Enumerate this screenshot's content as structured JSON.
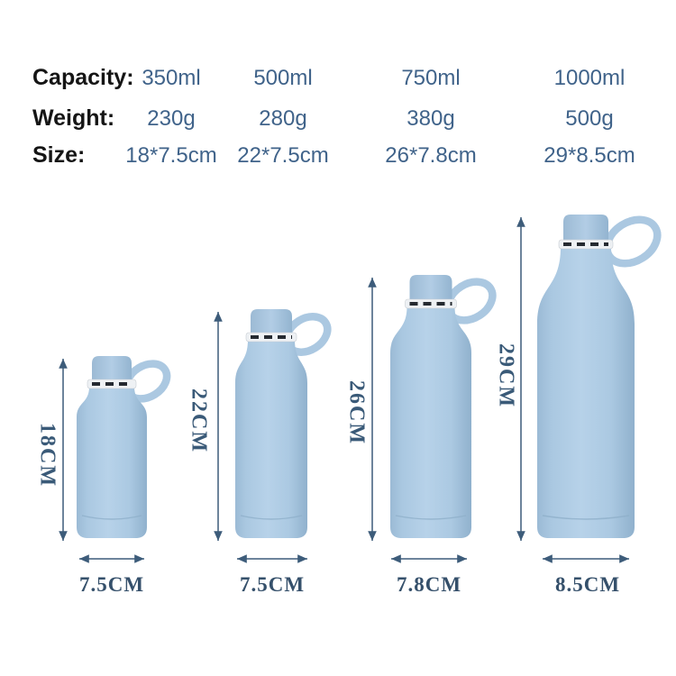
{
  "spec_table": {
    "rows": [
      {
        "label": "Capacity:",
        "values": [
          "350ml",
          "500ml",
          "750ml",
          "1000ml"
        ]
      },
      {
        "label": "Weight:",
        "values": [
          "230g",
          "280g",
          "380g",
          "500g"
        ]
      },
      {
        "label": "Size:",
        "values": [
          "18*7.5cm",
          "22*7.5cm",
          "26*7.8cm",
          "29*8.5cm"
        ]
      }
    ]
  },
  "bottles": [
    {
      "capacity": "350ml",
      "height_label": "18CM",
      "diameter_label": "7.5CM"
    },
    {
      "capacity": "500ml",
      "height_label": "22CM",
      "diameter_label": "7.5CM"
    },
    {
      "capacity": "750ml",
      "height_label": "26CM",
      "diameter_label": "7.8CM"
    },
    {
      "capacity": "1000ml",
      "height_label": "29CM",
      "diameter_label": "8.5CM"
    }
  ],
  "colors": {
    "value_text": "#40638a",
    "dimension_text": "#3a5a78",
    "arrow": "#3d5c7a",
    "bottle_body": "#abc8e1",
    "ring_dash": "#252a31"
  }
}
